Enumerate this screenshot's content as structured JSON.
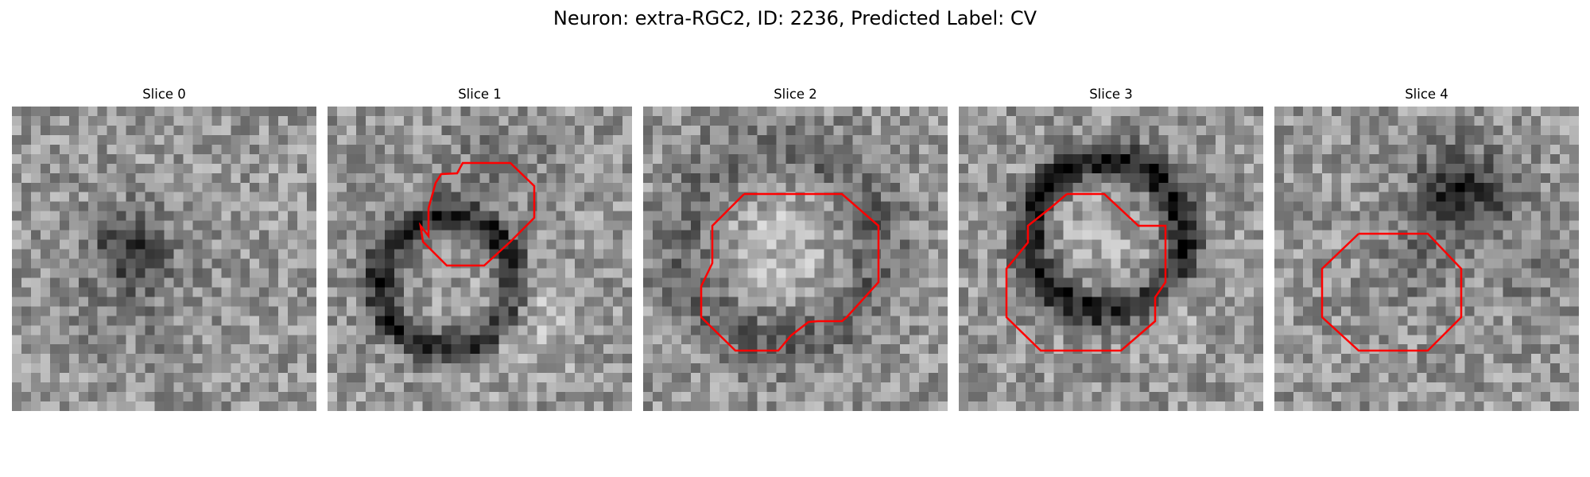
{
  "figure": {
    "title": "Neuron: extra-RGC2, ID: 2236, Predicted Label: CV",
    "contour_color": "#ff0000"
  },
  "panels": [
    {
      "title": "Slice 0",
      "has_contour": false
    },
    {
      "title": "Slice 1",
      "has_contour": true
    },
    {
      "title": "Slice 2",
      "has_contour": true
    },
    {
      "title": "Slice 3",
      "has_contour": true
    },
    {
      "title": "Slice 4",
      "has_contour": true
    }
  ]
}
